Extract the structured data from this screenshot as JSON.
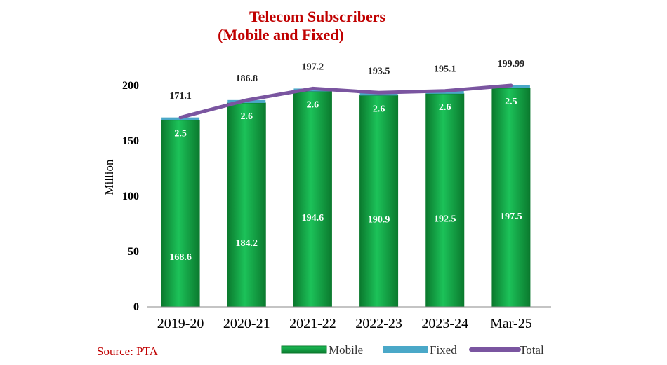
{
  "colors": {
    "mobile": "#14b04a",
    "mobile_dark": "#0b7a2e",
    "fixed": "#4aa8c8",
    "total": "#7a55a0",
    "title": "#c00000",
    "source": "#c00000"
  },
  "source": "Source: PTA",
  "chart_data": {
    "type": "bar",
    "stacked": true,
    "title": "Telecom Subscribers",
    "subtitle": "(Mobile and Fixed)",
    "xlabel": "",
    "ylabel": "Million",
    "ylim": [
      0,
      200
    ],
    "yticks": [
      0,
      50,
      100,
      150,
      200
    ],
    "grid": false,
    "legend_position": "bottom-right",
    "categories": [
      "2019-20",
      "2020-21",
      "2021-22",
      "2022-23",
      "2023-24",
      "Mar-25"
    ],
    "series": [
      {
        "name": "Mobile",
        "type": "bar",
        "values": [
          168.6,
          184.2,
          194.6,
          190.9,
          192.5,
          197.5
        ],
        "labels": [
          "168.6",
          "184.2",
          "194.6",
          "190.9",
          "192.5",
          "197.5"
        ]
      },
      {
        "name": "Fixed",
        "type": "bar",
        "values": [
          2.5,
          2.6,
          2.6,
          2.6,
          2.6,
          2.5
        ],
        "labels": [
          "2.5",
          "2.6",
          "2.6",
          "2.6",
          "2.6",
          "2.5"
        ]
      },
      {
        "name": "Total",
        "type": "line",
        "values": [
          171.1,
          186.8,
          197.2,
          193.5,
          195.1,
          199.99
        ],
        "labels": [
          "171.1",
          "186.8",
          "197.2",
          "193.5",
          "195.1",
          "199.99"
        ]
      }
    ]
  }
}
